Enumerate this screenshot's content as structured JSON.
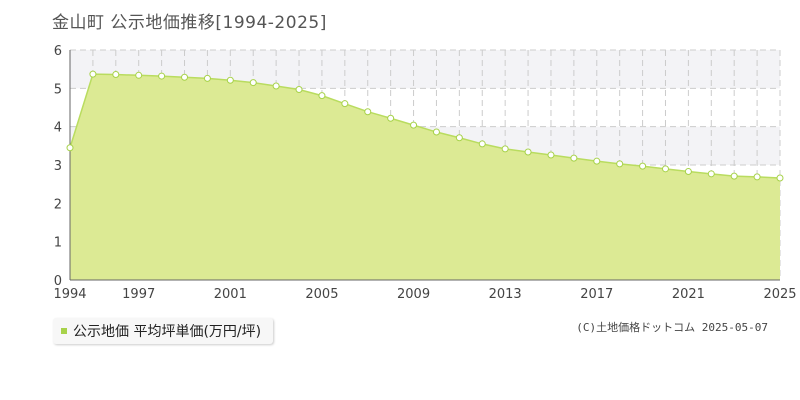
{
  "title": "金山町 公示地価推移[1994-2025]",
  "legend": {
    "label": "公示地価 平均坪単価(万円/坪)",
    "color": "#a7d24a"
  },
  "copyright": "(C)土地価格ドットコム 2025-05-07",
  "colors": {
    "area_fill": "#dcea94",
    "line": "#b9dc5f",
    "marker_fill": "#ffffff",
    "marker_stroke": "#a7d24a",
    "grid": "#cccccc",
    "band": "#f3f3f6"
  },
  "chart_data": {
    "type": "area",
    "title": "金山町 公示地価推移[1994-2025]",
    "xlabel": "",
    "ylabel": "",
    "xlim": [
      1994,
      2025
    ],
    "ylim": [
      0,
      6
    ],
    "x_ticks": [
      1994,
      1997,
      2001,
      2005,
      2009,
      2013,
      2017,
      2021,
      2025
    ],
    "y_ticks": [
      0,
      1,
      2,
      3,
      4,
      5,
      6
    ],
    "grid": true,
    "legend_position": "bottom-left",
    "series": [
      {
        "name": "公示地価 平均坪単価(万円/坪)",
        "x": [
          1994,
          1995,
          1996,
          1997,
          1998,
          1999,
          2000,
          2001,
          2002,
          2003,
          2004,
          2005,
          2006,
          2007,
          2008,
          2009,
          2010,
          2011,
          2012,
          2013,
          2014,
          2015,
          2016,
          2017,
          2018,
          2019,
          2020,
          2021,
          2022,
          2023,
          2024,
          2025
        ],
        "values": [
          3.45,
          5.37,
          5.36,
          5.34,
          5.32,
          5.29,
          5.26,
          5.21,
          5.15,
          5.06,
          4.97,
          4.81,
          4.6,
          4.39,
          4.22,
          4.04,
          3.86,
          3.71,
          3.55,
          3.42,
          3.34,
          3.26,
          3.18,
          3.1,
          3.03,
          2.97,
          2.9,
          2.83,
          2.77,
          2.71,
          2.69,
          2.66
        ]
      }
    ]
  }
}
